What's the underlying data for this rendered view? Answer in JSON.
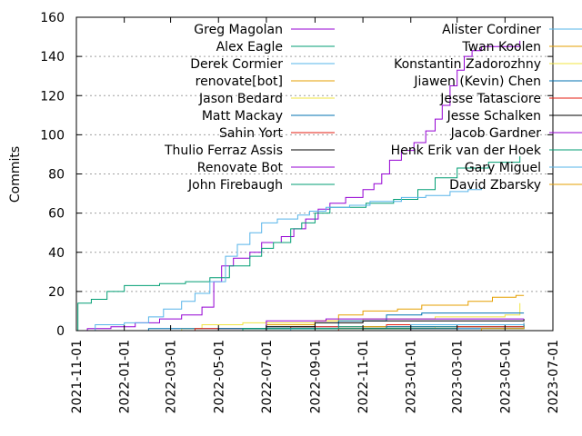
{
  "chart_data": {
    "type": "line",
    "step": true,
    "ylabel": "Commits",
    "xlabel": "",
    "ylim": [
      0,
      160
    ],
    "yticks": [
      0,
      20,
      40,
      60,
      80,
      100,
      120,
      140,
      160
    ],
    "xlim": [
      "2021-11-01",
      "2023-07-01"
    ],
    "xticks": [
      "2021-11-01",
      "2022-01-01",
      "2022-03-01",
      "2022-05-01",
      "2022-07-01",
      "2022-09-01",
      "2022-11-01",
      "2023-01-01",
      "2023-03-01",
      "2023-05-01",
      "2023-07-01"
    ],
    "grid": {
      "y": true,
      "x": false
    },
    "legend": {
      "placement": "top",
      "columns": 2
    },
    "series": [
      {
        "name": "Greg Magolan",
        "color": "#9400d3",
        "points": [
          [
            "2021-11-01",
            0
          ],
          [
            "2021-11-15",
            1
          ],
          [
            "2021-12-15",
            2
          ],
          [
            "2022-01-15",
            4
          ],
          [
            "2022-02-15",
            6
          ],
          [
            "2022-03-15",
            8
          ],
          [
            "2022-04-10",
            12
          ],
          [
            "2022-04-25",
            25
          ],
          [
            "2022-05-05",
            33
          ],
          [
            "2022-05-20",
            37
          ],
          [
            "2022-06-10",
            40
          ],
          [
            "2022-06-25",
            45
          ],
          [
            "2022-07-20",
            48
          ],
          [
            "2022-08-05",
            52
          ],
          [
            "2022-08-20",
            57
          ],
          [
            "2022-09-05",
            62
          ],
          [
            "2022-09-20",
            65
          ],
          [
            "2022-10-10",
            68
          ],
          [
            "2022-11-01",
            72
          ],
          [
            "2022-11-15",
            75
          ],
          [
            "2022-11-25",
            80
          ],
          [
            "2022-12-05",
            87
          ],
          [
            "2022-12-20",
            92
          ],
          [
            "2023-01-05",
            96
          ],
          [
            "2023-01-20",
            102
          ],
          [
            "2023-02-01",
            108
          ],
          [
            "2023-02-10",
            115
          ],
          [
            "2023-02-20",
            125
          ],
          [
            "2023-03-01",
            133
          ],
          [
            "2023-03-10",
            140
          ],
          [
            "2023-03-20",
            143
          ],
          [
            "2023-04-01",
            145
          ],
          [
            "2023-05-20",
            148
          ]
        ]
      },
      {
        "name": "Alex Eagle",
        "color": "#009e73",
        "points": [
          [
            "2021-11-01",
            0
          ],
          [
            "2021-11-03",
            14
          ],
          [
            "2021-11-20",
            16
          ],
          [
            "2021-12-10",
            20
          ],
          [
            "2022-01-01",
            23
          ],
          [
            "2022-02-15",
            24
          ],
          [
            "2022-03-20",
            25
          ],
          [
            "2022-04-20",
            27
          ],
          [
            "2022-05-15",
            33
          ],
          [
            "2022-06-10",
            38
          ],
          [
            "2022-06-25",
            42
          ],
          [
            "2022-07-10",
            45
          ],
          [
            "2022-08-01",
            52
          ],
          [
            "2022-08-15",
            55
          ],
          [
            "2022-09-01",
            60
          ],
          [
            "2022-09-20",
            63
          ],
          [
            "2022-10-15",
            63
          ],
          [
            "2022-11-05",
            65
          ],
          [
            "2022-12-10",
            67
          ],
          [
            "2023-01-10",
            72
          ],
          [
            "2023-02-01",
            78
          ],
          [
            "2023-03-01",
            83
          ],
          [
            "2023-04-10",
            86
          ],
          [
            "2023-05-20",
            89
          ]
        ]
      },
      {
        "name": "Derek Cormier",
        "color": "#56b4e9",
        "points": [
          [
            "2021-11-01",
            0
          ],
          [
            "2021-11-25",
            3
          ],
          [
            "2022-01-01",
            4
          ],
          [
            "2022-02-01",
            7
          ],
          [
            "2022-02-20",
            11
          ],
          [
            "2022-03-15",
            15
          ],
          [
            "2022-04-01",
            19
          ],
          [
            "2022-04-20",
            25
          ],
          [
            "2022-05-10",
            38
          ],
          [
            "2022-05-25",
            44
          ],
          [
            "2022-06-10",
            50
          ],
          [
            "2022-06-25",
            55
          ],
          [
            "2022-07-15",
            57
          ],
          [
            "2022-08-10",
            59
          ],
          [
            "2022-08-25",
            61
          ],
          [
            "2022-09-15",
            63
          ],
          [
            "2022-10-15",
            64
          ],
          [
            "2022-11-10",
            66
          ],
          [
            "2022-12-20",
            68
          ],
          [
            "2023-01-20",
            69
          ],
          [
            "2023-02-20",
            71
          ],
          [
            "2023-03-15",
            72
          ],
          [
            "2023-04-01",
            73
          ]
        ]
      },
      {
        "name": "renovate[bot]",
        "color": "#e69f00",
        "points": [
          [
            "2021-11-01",
            0
          ],
          [
            "2022-05-01",
            1
          ],
          [
            "2022-07-01",
            3
          ],
          [
            "2022-09-01",
            5
          ],
          [
            "2022-10-01",
            8
          ],
          [
            "2022-11-01",
            10
          ],
          [
            "2022-12-15",
            11
          ],
          [
            "2023-01-15",
            13
          ],
          [
            "2023-03-15",
            15
          ],
          [
            "2023-04-15",
            17
          ],
          [
            "2023-05-15",
            18
          ],
          [
            "2023-05-25",
            18
          ]
        ]
      },
      {
        "name": "Jason Bedard",
        "color": "#f0e442",
        "points": [
          [
            "2021-11-01",
            0
          ],
          [
            "2022-03-15",
            1
          ],
          [
            "2022-04-10",
            3
          ],
          [
            "2022-06-01",
            4
          ],
          [
            "2022-09-01",
            5
          ],
          [
            "2022-11-01",
            6
          ],
          [
            "2023-02-01",
            7
          ],
          [
            "2023-05-01",
            8
          ],
          [
            "2023-05-20",
            14
          ]
        ]
      },
      {
        "name": "Matt Mackay",
        "color": "#0072b2",
        "points": [
          [
            "2021-11-01",
            0
          ],
          [
            "2022-02-01",
            1
          ],
          [
            "2022-07-01",
            2
          ],
          [
            "2022-10-01",
            5
          ],
          [
            "2022-12-01",
            8
          ],
          [
            "2023-01-15",
            9
          ],
          [
            "2023-05-25",
            9
          ]
        ]
      },
      {
        "name": "Sahin Yort",
        "color": "#e51e10",
        "points": [
          [
            "2021-11-01",
            0
          ],
          [
            "2022-04-01",
            1
          ],
          [
            "2022-08-01",
            2
          ],
          [
            "2022-12-01",
            3
          ],
          [
            "2023-05-25",
            4
          ]
        ]
      },
      {
        "name": "Thulio Ferraz Assis",
        "color": "#000000",
        "points": [
          [
            "2021-11-01",
            0
          ],
          [
            "2022-07-01",
            2
          ],
          [
            "2022-09-01",
            4
          ],
          [
            "2022-11-01",
            5
          ],
          [
            "2023-05-25",
            6
          ]
        ]
      },
      {
        "name": "Renovate Bot",
        "color": "#9400d3",
        "points": [
          [
            "2021-11-01",
            0
          ],
          [
            "2022-07-01",
            5
          ],
          [
            "2022-09-15",
            6
          ],
          [
            "2023-05-25",
            6
          ]
        ]
      },
      {
        "name": "John Firebaugh",
        "color": "#009e73",
        "points": [
          [
            "2021-11-01",
            0
          ],
          [
            "2022-06-01",
            1
          ],
          [
            "2022-10-01",
            2
          ],
          [
            "2023-05-25",
            3
          ]
        ]
      },
      {
        "name": "Alister Cordiner",
        "color": "#56b4e9",
        "points": [
          [
            "2021-11-01",
            0
          ],
          [
            "2022-08-01",
            1
          ],
          [
            "2023-01-01",
            3
          ],
          [
            "2023-05-25",
            4
          ]
        ]
      },
      {
        "name": "Twan Koolen",
        "color": "#e69f00",
        "points": [
          [
            "2021-11-01",
            0
          ],
          [
            "2022-11-01",
            2
          ],
          [
            "2023-05-25",
            3
          ]
        ]
      },
      {
        "name": "Konstantin Zadorozhny",
        "color": "#f0e442",
        "points": [
          [
            "2021-11-01",
            0
          ],
          [
            "2022-09-01",
            1
          ],
          [
            "2023-02-01",
            2
          ],
          [
            "2023-05-25",
            3
          ]
        ]
      },
      {
        "name": "Jiawen (Kevin) Chen",
        "color": "#0072b2",
        "points": [
          [
            "2021-11-01",
            0
          ],
          [
            "2022-05-01",
            1
          ],
          [
            "2022-12-01",
            2
          ],
          [
            "2023-05-25",
            3
          ]
        ]
      },
      {
        "name": "Jesse Tatasciore",
        "color": "#e51e10",
        "points": [
          [
            "2021-11-01",
            0
          ],
          [
            "2022-10-01",
            1
          ],
          [
            "2023-03-01",
            2
          ],
          [
            "2023-05-25",
            2
          ]
        ]
      },
      {
        "name": "Jesse Schalken",
        "color": "#000000",
        "points": [
          [
            "2021-11-01",
            0
          ],
          [
            "2022-11-01",
            1
          ],
          [
            "2023-05-25",
            2
          ]
        ]
      },
      {
        "name": "Jacob Gardner",
        "color": "#9400d3",
        "points": [
          [
            "2021-11-01",
            0
          ],
          [
            "2023-01-01",
            1
          ],
          [
            "2023-05-25",
            2
          ]
        ]
      },
      {
        "name": "Henk Erik van der Hoek",
        "color": "#009e73",
        "points": [
          [
            "2021-11-01",
            0
          ],
          [
            "2022-06-01",
            1
          ],
          [
            "2023-05-25",
            2
          ]
        ]
      },
      {
        "name": "Gary Miguel",
        "color": "#56b4e9",
        "points": [
          [
            "2021-11-01",
            0
          ],
          [
            "2023-03-01",
            1
          ],
          [
            "2023-05-25",
            2
          ]
        ]
      },
      {
        "name": "David Zbarsky",
        "color": "#e69f00",
        "points": [
          [
            "2021-11-01",
            0
          ],
          [
            "2023-04-01",
            1
          ],
          [
            "2023-05-25",
            2
          ]
        ]
      }
    ]
  }
}
